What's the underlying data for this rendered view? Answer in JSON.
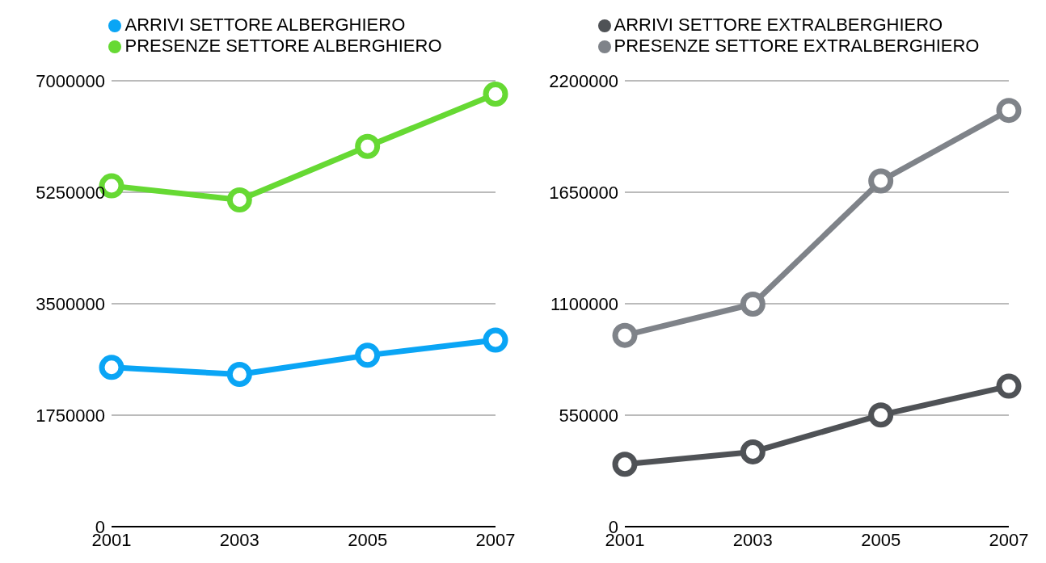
{
  "chart_data": [
    {
      "type": "line",
      "categories": [
        "2001",
        "2003",
        "2005",
        "2007"
      ],
      "series": [
        {
          "name": "ARRIVI SETTORE ALBERGHIERO",
          "color": "#0aa5f5",
          "values": [
            2500000,
            2390000,
            2690000,
            2930000
          ]
        },
        {
          "name": "PRESENZE SETTORE ALBERGHIERO",
          "color": "#66d933",
          "values": [
            5350000,
            5130000,
            5970000,
            6790000
          ]
        }
      ],
      "ylim": [
        0,
        7000000
      ],
      "yticks": [
        0,
        1750000,
        3500000,
        5250000,
        7000000
      ],
      "grid": "y",
      "legend": "top",
      "marker": "circle",
      "line_style": "solid"
    },
    {
      "type": "line",
      "categories": [
        "2001",
        "2003",
        "2005",
        "2007"
      ],
      "series": [
        {
          "name": "ARRIVI SETTORE EXTRALBERGHIERO",
          "color": "#4f5256",
          "values": [
            308000,
            369000,
            551000,
            693000
          ]
        },
        {
          "name": "PRESENZE SETTORE EXTRALBERGHIERO",
          "color": "#7f8389",
          "values": [
            944000,
            1098000,
            1706000,
            2054000
          ]
        }
      ],
      "ylim": [
        0,
        2200000
      ],
      "yticks": [
        0,
        550000,
        1100000,
        1650000,
        2200000
      ],
      "grid": "y",
      "legend": "top",
      "marker": "circle",
      "line_style": "solid"
    }
  ]
}
